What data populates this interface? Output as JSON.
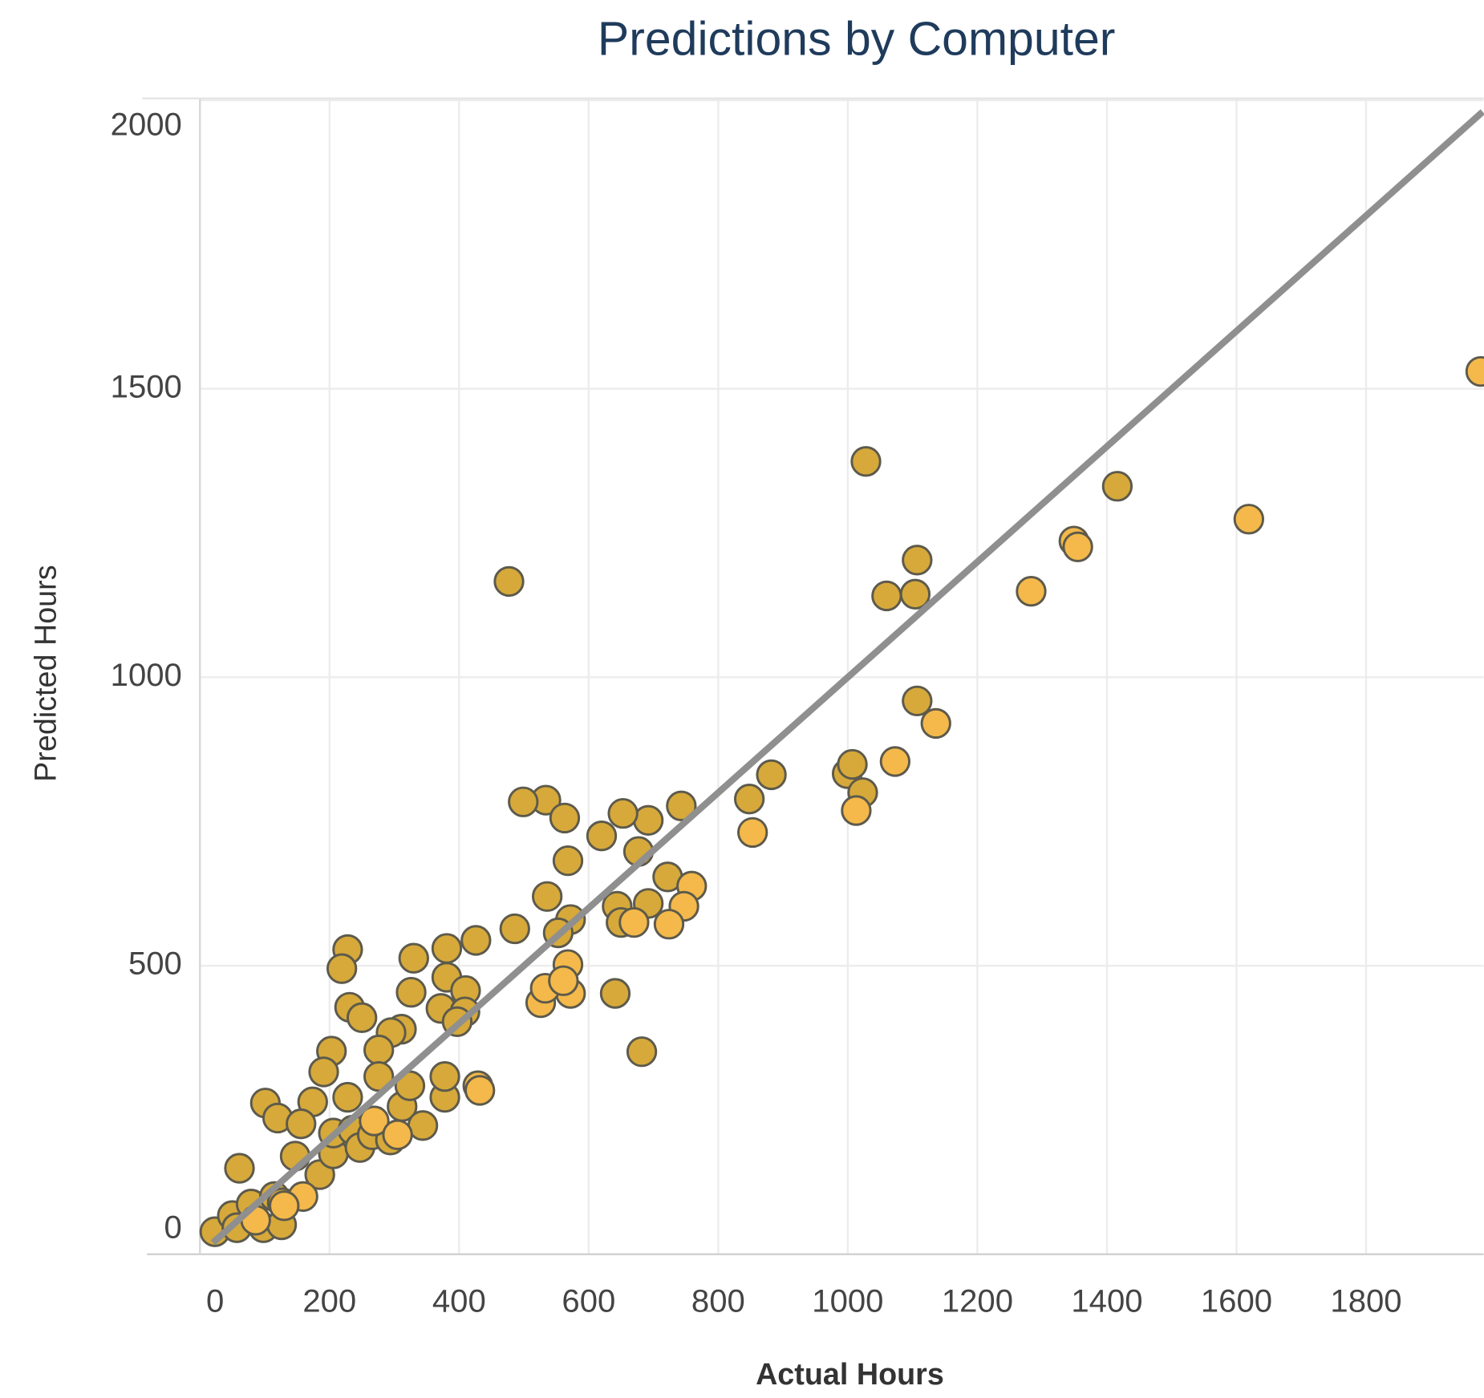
{
  "chart_data": {
    "type": "scatter",
    "title": "Predictions by Computer",
    "x_label": "Actual Hours",
    "y_label": "Predicted Hours",
    "xlim": [
      0,
      1980
    ],
    "ylim": [
      0,
      2000
    ],
    "xticks": [
      0,
      200,
      400,
      600,
      800,
      1000,
      1200,
      1400,
      1600,
      1800
    ],
    "yticks": [
      0,
      500,
      1000,
      1500,
      2000
    ],
    "grid": true,
    "trend_line": {
      "x": [
        20,
        1980
      ],
      "y": [
        20,
        1980
      ],
      "color": "#8f8f8f"
    },
    "series": [
      {
        "color": "#d6a93a",
        "x": [
          477,
          1028,
          1416,
          1107,
          1060,
          1104,
          1107,
          999,
          1007,
          1023,
          882,
          848,
          743,
          692,
          653,
          620,
          677,
          568,
          534,
          499,
          563,
          536,
          486,
          426,
          381,
          330,
          228,
          219,
          381,
          410,
          372,
          409,
          397,
          326,
          231,
          250,
          311,
          295,
          276,
          203,
          191,
          101,
          120,
          174,
          156,
          61,
          147,
          185,
          206,
          206,
          228,
          236,
          247,
          266,
          276,
          294,
          312,
          324,
          344,
          378,
          378,
          641,
          644,
          650,
          692,
          722,
          682,
          572,
          553,
          98,
          126,
          23,
          50,
          79,
          115,
          127,
          57
        ],
        "values": [
          1166,
          1374,
          1331,
          1203,
          1141,
          1144,
          959,
          833,
          849,
          800,
          831,
          789,
          777,
          752,
          764,
          725,
          698,
          682,
          787,
          784,
          756,
          620,
          564,
          544,
          530,
          513,
          528,
          495,
          480,
          457,
          426,
          420,
          403,
          454,
          428,
          410,
          390,
          384,
          354,
          352,
          316,
          262,
          236,
          264,
          226,
          149,
          170,
          138,
          174,
          210,
          272,
          215,
          185,
          207,
          308,
          198,
          256,
          292,
          223,
          272,
          308,
          452,
          603,
          575,
          608,
          654,
          351,
          580,
          557,
          46,
          51,
          39,
          67,
          87,
          100,
          89,
          46
        ]
      },
      {
        "color": "#f4b94a",
        "x": [
          1619,
          1349,
          1355,
          1283,
          1136,
          1073,
          1013,
          853,
          759,
          747,
          724,
          670,
          568,
          572,
          526,
          533,
          561,
          429,
          432,
          1977,
          159,
          130,
          269,
          305,
          86
        ],
        "values": [
          1274,
          1236,
          1226,
          1149,
          920,
          854,
          769,
          731,
          638,
          603,
          572,
          575,
          502,
          452,
          436,
          461,
          474,
          292,
          284,
          1530,
          100,
          84,
          231,
          207,
          59
        ]
      }
    ]
  }
}
